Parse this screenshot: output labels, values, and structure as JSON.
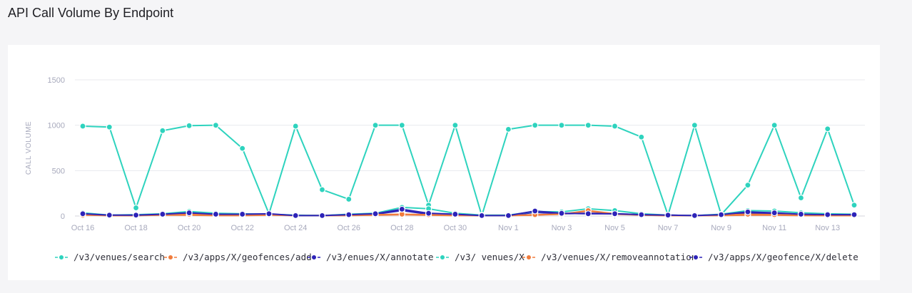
{
  "page": {
    "title": "API Call Volume By Endpoint"
  },
  "chart_data": {
    "type": "line",
    "title": "",
    "xlabel": "",
    "ylabel": "CALL VOLUME",
    "ylim": [
      0,
      1500
    ],
    "yticks": [
      0,
      500,
      1000,
      1500
    ],
    "grid": true,
    "legend_position": "bottom",
    "x": [
      "Oct 16",
      "Oct 17",
      "Oct 18",
      "Oct 19",
      "Oct 20",
      "Oct 21",
      "Oct 22",
      "Oct 23",
      "Oct 24",
      "Oct 25",
      "Oct 26",
      "Oct 27",
      "Oct 28",
      "Oct 29",
      "Oct 30",
      "Oct 31",
      "Nov 1",
      "Nov 2",
      "Nov 3",
      "Nov 4",
      "Nov 5",
      "Nov 6",
      "Nov 7",
      "Nov 8",
      "Nov 9",
      "Nov 10",
      "Nov 11",
      "Nov 12",
      "Nov 13",
      "Nov 14"
    ],
    "x_tick_labels": [
      "Oct 16",
      "Oct 18",
      "Oct 20",
      "Oct 22",
      "Oct 24",
      "Oct 26",
      "Oct 28",
      "Oct 30",
      "Nov 1",
      "Nov 3",
      "Nov 5",
      "Nov 7",
      "Nov 9",
      "Nov 11",
      "Nov 13"
    ],
    "series": [
      {
        "name": "/v3/venues/search",
        "color": "#2ed3be",
        "values": [
          990,
          980,
          90,
          940,
          995,
          1000,
          745,
          25,
          990,
          290,
          185,
          1000,
          1000,
          120,
          1000,
          5,
          955,
          1000,
          1000,
          1000,
          990,
          870,
          10,
          1000,
          15,
          340,
          1000,
          200,
          960,
          120
        ]
      },
      {
        "name": "/v3/apps/X/geofences/add",
        "color": "#f07c3d",
        "values": [
          15,
          5,
          5,
          10,
          10,
          5,
          5,
          10,
          5,
          5,
          5,
          10,
          15,
          10,
          5,
          5,
          5,
          10,
          20,
          55,
          20,
          10,
          5,
          5,
          5,
          10,
          10,
          5,
          5,
          5
        ]
      },
      {
        "name": "/v3/enues/X/annotate",
        "color": "#2d23b8",
        "values": [
          20,
          10,
          5,
          20,
          25,
          15,
          15,
          20,
          5,
          5,
          15,
          20,
          60,
          20,
          15,
          5,
          5,
          40,
          25,
          30,
          25,
          15,
          10,
          5,
          15,
          30,
          25,
          15,
          10,
          10
        ]
      },
      {
        "name": "/v3/ venues/X",
        "color": "#2ed3be",
        "values": [
          35,
          10,
          15,
          25,
          50,
          30,
          25,
          20,
          10,
          5,
          20,
          30,
          95,
          80,
          30,
          10,
          10,
          50,
          45,
          80,
          60,
          25,
          10,
          5,
          20,
          60,
          55,
          35,
          25,
          20
        ]
      },
      {
        "name": "/v3/venues/X/removeannotation",
        "color": "#f07c3d",
        "values": [
          10,
          5,
          5,
          15,
          20,
          10,
          10,
          15,
          5,
          5,
          10,
          15,
          20,
          15,
          10,
          5,
          5,
          15,
          20,
          60,
          25,
          10,
          5,
          5,
          10,
          20,
          15,
          10,
          5,
          5
        ]
      },
      {
        "name": "/v3/apps/X/geofence/X/delete",
        "color": "#2d23b8",
        "values": [
          25,
          10,
          10,
          20,
          35,
          20,
          20,
          25,
          5,
          5,
          15,
          25,
          75,
          30,
          20,
          5,
          5,
          55,
          30,
          25,
          25,
          15,
          10,
          5,
          15,
          45,
          35,
          20,
          15,
          15
        ]
      }
    ]
  }
}
